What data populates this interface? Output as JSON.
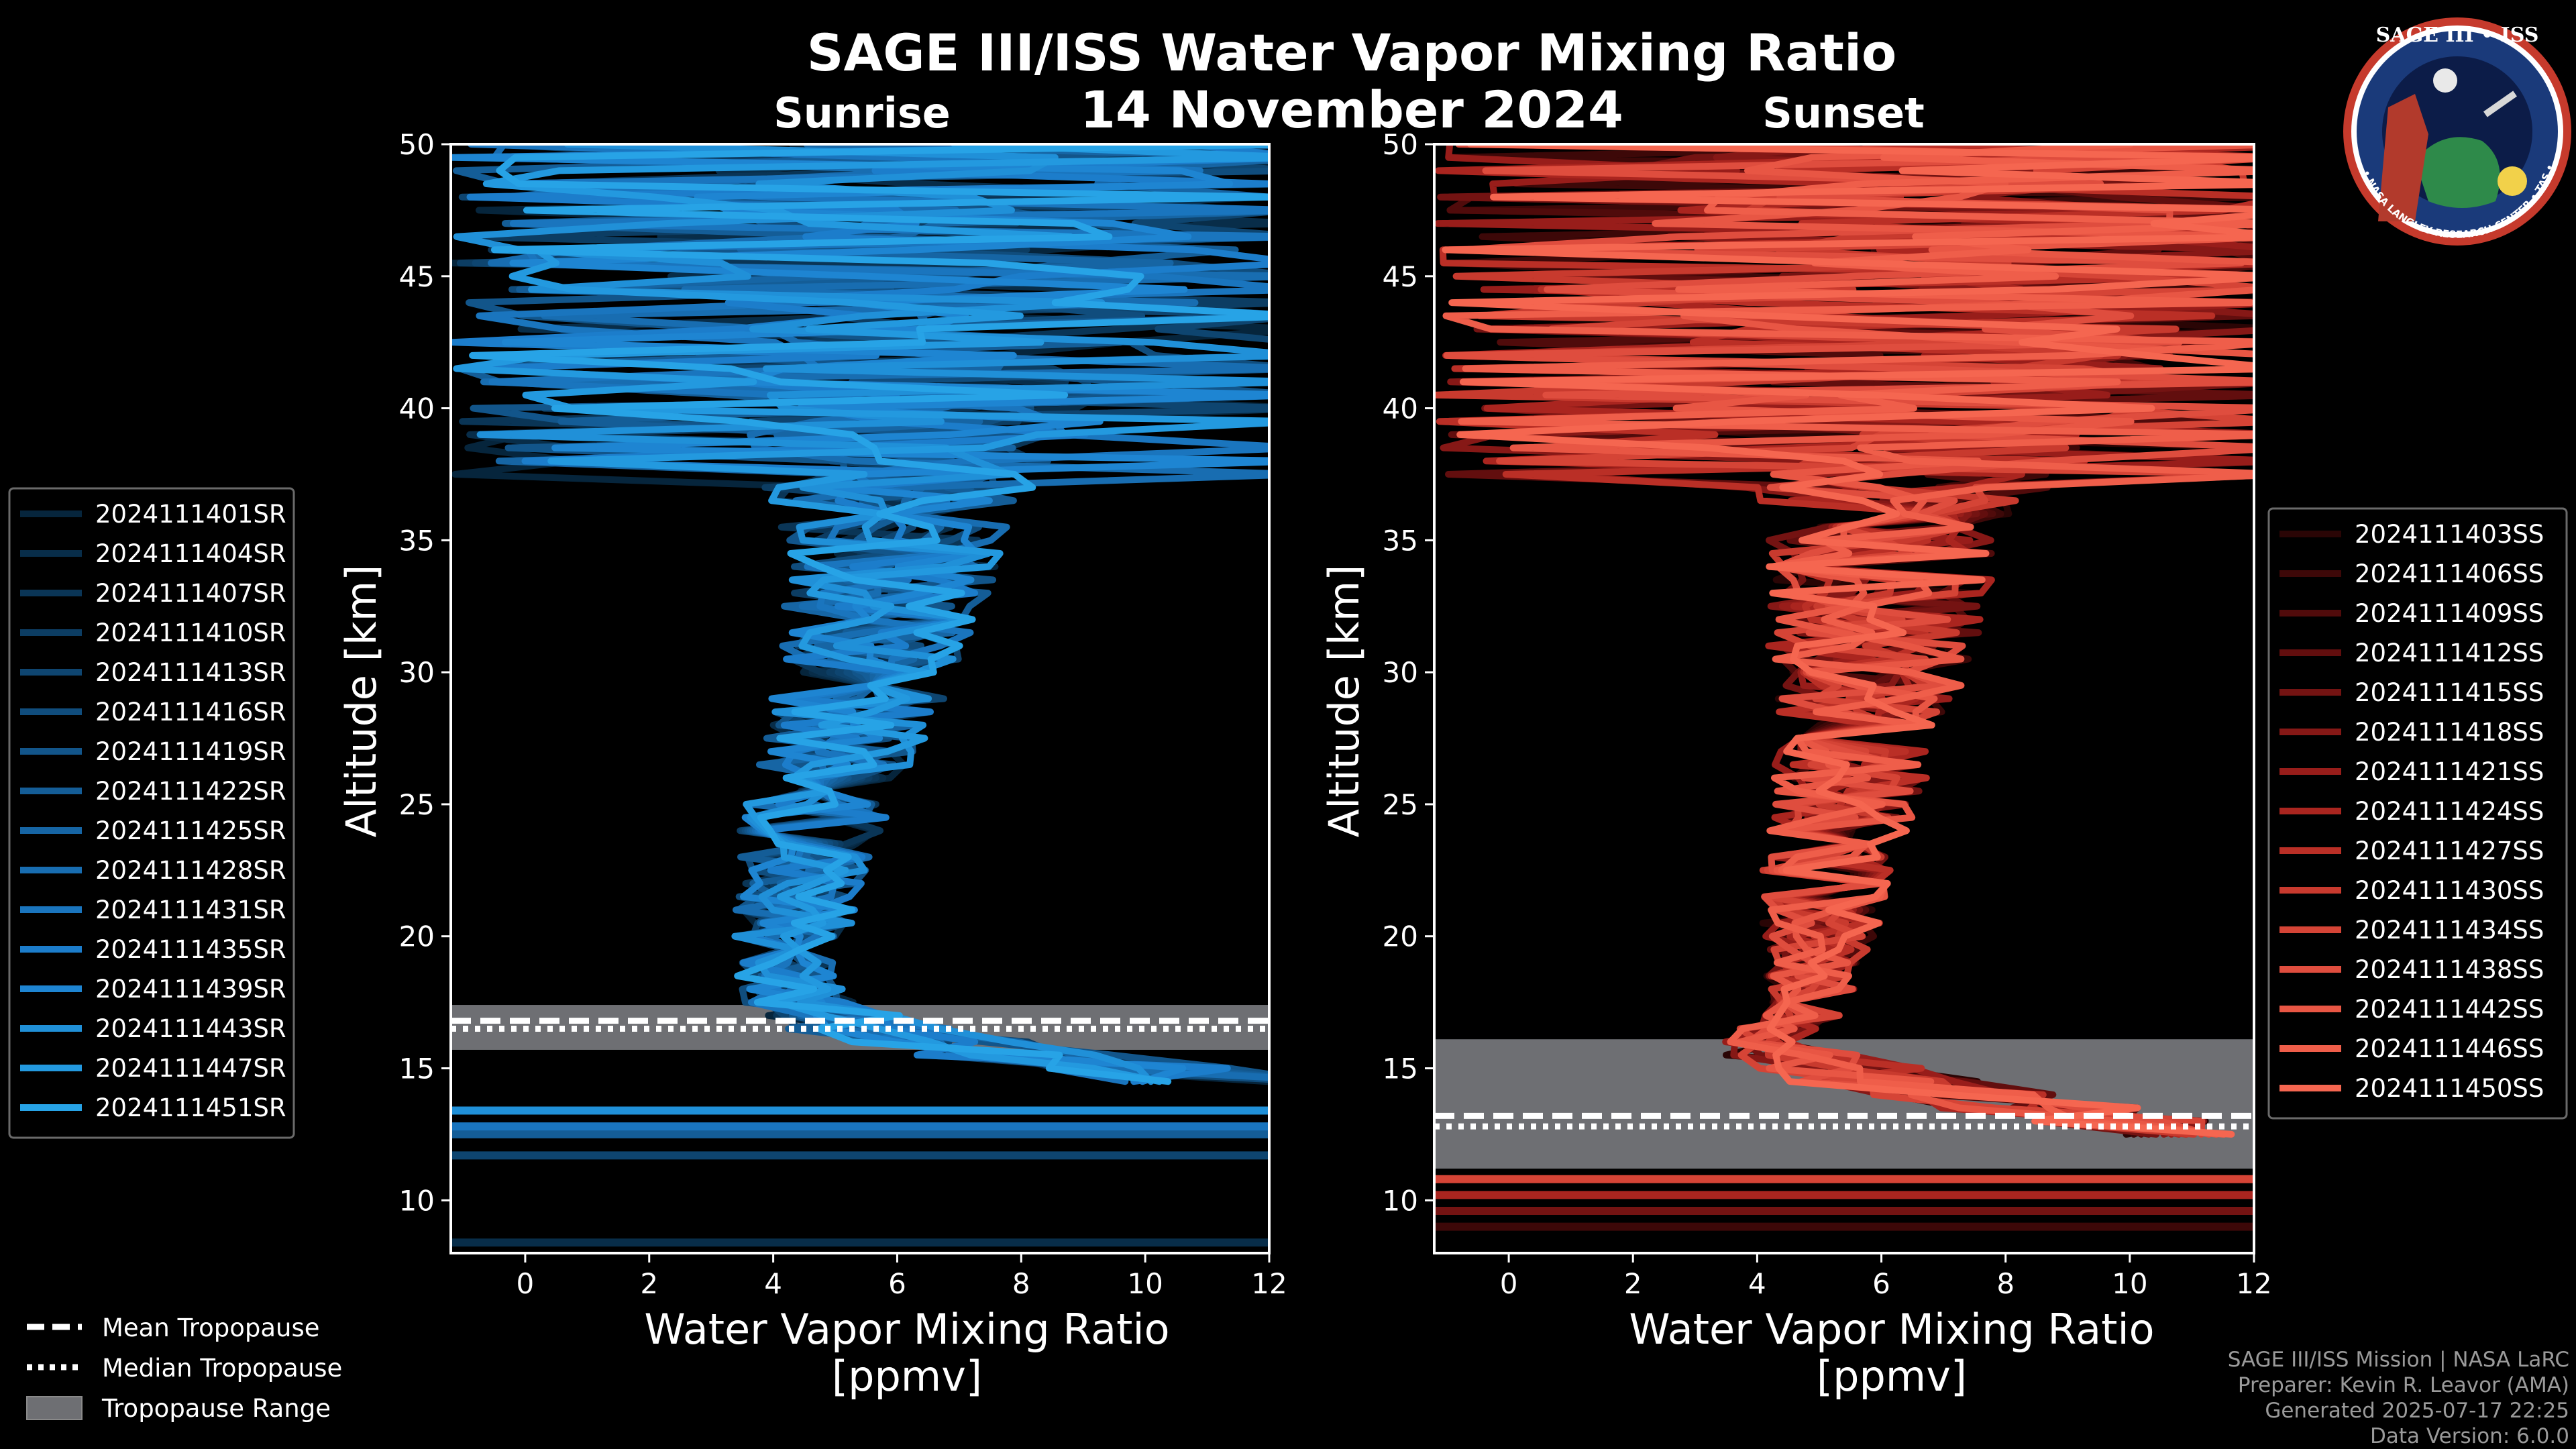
{
  "title": "SAGE III/ISS Water Vapor Mixing Ratio",
  "date": "14 November 2024",
  "logo": {
    "text_top": "SAGE III • ISS",
    "text_bottom": "BALL • NASA LANGLEY RESEARCH CENTER • TAS • ESA"
  },
  "credits": {
    "line1": "SAGE III/ISS Mission | NASA LaRC",
    "line2": "Preparer: Kevin R. Leavor (AMA)",
    "line3": "Generated 2025-07-17 22:25",
    "line4": "Data Version: 6.0.0"
  },
  "tropopause_legend": {
    "mean": "Mean Tropopause",
    "median": "Median Tropopause",
    "range": "Tropopause Range"
  },
  "colors": {
    "background": "#000000",
    "sunrise_base": "#1a8fd6",
    "sunset_base": "#ee5a48",
    "tropopause_range": "#6e6f73"
  },
  "chart_data": [
    {
      "type": "line",
      "subtitle": "Sunrise",
      "xlabel_line1": "Water Vapor Mixing Ratio",
      "xlabel_line2": "[ppmv]",
      "ylabel": "Altitude [km]",
      "xlim": [
        -1.2,
        12
      ],
      "ylim": [
        8,
        50
      ],
      "xticks": [
        0,
        2,
        4,
        6,
        8,
        10,
        12
      ],
      "yticks": [
        10,
        15,
        20,
        25,
        30,
        35,
        40,
        45,
        50
      ],
      "tropopause": {
        "mean": 16.8,
        "median": 16.5,
        "range": [
          15.7,
          17.4
        ]
      },
      "series_names": [
        "2024111401SR",
        "2024111404SR",
        "2024111407SR",
        "2024111410SR",
        "2024111413SR",
        "2024111416SR",
        "2024111419SR",
        "2024111422SR",
        "2024111425SR",
        "2024111428SR",
        "2024111431SR",
        "2024111435SR",
        "2024111439SR",
        "2024111443SR",
        "2024111447SR",
        "2024111451SR"
      ],
      "series_colors": [
        "#06253c",
        "#082d49",
        "#0a3556",
        "#0c3d63",
        "#0e4570",
        "#104d7d",
        "#12558a",
        "#145d97",
        "#1665a4",
        "#186db1",
        "#1a75be",
        "#1c7dcb",
        "#1e85d2",
        "#2090d8",
        "#2399df",
        "#27a3e6"
      ],
      "horizontal_low_lines": [
        8.4,
        11.7,
        12.5,
        12.8,
        13.4
      ],
      "profile_shape": {
        "altitudes": [
          14.5,
          15.5,
          16.5,
          17.5,
          18.5,
          20,
          22,
          24,
          26,
          28,
          30,
          32,
          34,
          36,
          38,
          40,
          42,
          44,
          46,
          48,
          50
        ],
        "center": [
          11.5,
          8.0,
          5.5,
          4.4,
          4.2,
          4.3,
          4.4,
          4.6,
          4.9,
          5.2,
          5.5,
          5.7,
          5.9,
          6.0,
          6.2,
          6.4,
          6.6,
          6.8,
          7.0,
          7.2,
          7.4
        ],
        "spread": [
          1.6,
          1.5,
          1.2,
          0.8,
          0.7,
          0.8,
          0.9,
          1.0,
          1.1,
          1.2,
          1.3,
          1.4,
          1.5,
          1.7,
          2.2,
          2.8,
          3.4,
          3.8,
          4.2,
          4.6,
          5.0
        ]
      }
    },
    {
      "type": "line",
      "subtitle": "Sunset",
      "xlabel_line1": "Water Vapor Mixing Ratio",
      "xlabel_line2": "[ppmv]",
      "ylabel": "Altitude [km]",
      "xlim": [
        -1.2,
        12
      ],
      "ylim": [
        8,
        50
      ],
      "xticks": [
        0,
        2,
        4,
        6,
        8,
        10,
        12
      ],
      "yticks": [
        10,
        15,
        20,
        25,
        30,
        35,
        40,
        45,
        50
      ],
      "tropopause": {
        "mean": 13.2,
        "median": 12.8,
        "range": [
          11.2,
          16.1
        ]
      },
      "series_names": [
        "2024111403SS",
        "2024111406SS",
        "2024111409SS",
        "2024111412SS",
        "2024111415SS",
        "2024111418SS",
        "2024111421SS",
        "2024111424SS",
        "2024111427SS",
        "2024111430SS",
        "2024111434SS",
        "2024111438SS",
        "2024111442SS",
        "2024111446SS",
        "2024111450SS"
      ],
      "series_colors": [
        "#2a0505",
        "#3d0808",
        "#500b0b",
        "#620e0e",
        "#741312",
        "#861816",
        "#981d1a",
        "#aa251f",
        "#ba2f26",
        "#c83a2e",
        "#d54436",
        "#df4d3e",
        "#e85644",
        "#ef5e4a",
        "#f56650"
      ],
      "horizontal_low_lines": [
        9.0,
        9.6,
        10.2,
        10.8
      ],
      "profile_shape": {
        "altitudes": [
          12.5,
          13.5,
          14.5,
          15.5,
          16.0,
          17,
          18.5,
          20,
          22,
          24,
          26,
          28,
          30,
          32,
          34,
          36,
          38,
          40,
          42,
          44,
          46,
          48,
          50
        ],
        "center": [
          11.5,
          8.5,
          6.0,
          4.6,
          4.0,
          4.7,
          4.9,
          5.0,
          5.1,
          5.3,
          5.5,
          5.6,
          5.8,
          5.9,
          6.0,
          6.1,
          6.3,
          6.6,
          6.9,
          7.2,
          7.4,
          7.6,
          7.8
        ],
        "spread": [
          1.4,
          1.5,
          1.4,
          1.0,
          0.5,
          0.6,
          0.7,
          0.8,
          0.9,
          1.0,
          1.1,
          1.2,
          1.4,
          1.5,
          1.6,
          1.8,
          2.6,
          3.4,
          4.0,
          4.4,
          4.8,
          5.0,
          5.2
        ]
      }
    }
  ]
}
